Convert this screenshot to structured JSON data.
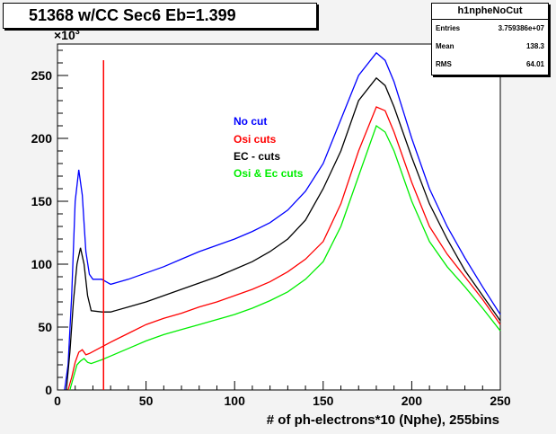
{
  "title": "51368 w/CC Sec6 Eb=1.399",
  "stats": {
    "name": "h1npheNoCut",
    "rows": [
      {
        "label": "Entries",
        "value": "3.759386e+07"
      },
      {
        "label": "Mean",
        "value": "138.3"
      },
      {
        "label": "RMS",
        "value": "64.01"
      }
    ]
  },
  "chart_data": {
    "type": "line",
    "title": "51368 w/CC Sec6 Eb=1.399",
    "xlabel": "# of ph-electrons*10 (Nphe), 255bins",
    "ylabel": "",
    "y_multiplier_label": "×10",
    "y_multiplier_exponent": "3",
    "xlim": [
      0,
      250
    ],
    "ylim": [
      0,
      275
    ],
    "x_ticks": [
      0,
      50,
      100,
      150,
      200,
      250
    ],
    "y_ticks": [
      0,
      50,
      100,
      150,
      200,
      250
    ],
    "grid": false,
    "vertical_marker_x": 26,
    "series": [
      {
        "name": "No cut",
        "color": "#0000ff",
        "points": [
          [
            4,
            0
          ],
          [
            6,
            20
          ],
          [
            8,
            75
          ],
          [
            10,
            150
          ],
          [
            12,
            175
          ],
          [
            14,
            155
          ],
          [
            16,
            110
          ],
          [
            18,
            92
          ],
          [
            20,
            88
          ],
          [
            25,
            88
          ],
          [
            30,
            84
          ],
          [
            40,
            88
          ],
          [
            50,
            93
          ],
          [
            60,
            98
          ],
          [
            70,
            104
          ],
          [
            80,
            110
          ],
          [
            90,
            115
          ],
          [
            100,
            120
          ],
          [
            110,
            126
          ],
          [
            120,
            133
          ],
          [
            130,
            143
          ],
          [
            140,
            158
          ],
          [
            150,
            180
          ],
          [
            160,
            215
          ],
          [
            170,
            250
          ],
          [
            180,
            268
          ],
          [
            185,
            262
          ],
          [
            190,
            245
          ],
          [
            200,
            200
          ],
          [
            210,
            160
          ],
          [
            220,
            130
          ],
          [
            230,
            105
          ],
          [
            240,
            82
          ],
          [
            250,
            60
          ]
        ]
      },
      {
        "name": "Osi cuts",
        "color": "#ff0000",
        "points": [
          [
            6,
            0
          ],
          [
            8,
            10
          ],
          [
            10,
            22
          ],
          [
            12,
            30
          ],
          [
            14,
            32
          ],
          [
            16,
            28
          ],
          [
            18,
            29
          ],
          [
            22,
            32
          ],
          [
            30,
            38
          ],
          [
            40,
            45
          ],
          [
            50,
            52
          ],
          [
            60,
            57
          ],
          [
            70,
            61
          ],
          [
            80,
            66
          ],
          [
            90,
            70
          ],
          [
            100,
            75
          ],
          [
            110,
            80
          ],
          [
            120,
            86
          ],
          [
            130,
            94
          ],
          [
            140,
            104
          ],
          [
            150,
            118
          ],
          [
            160,
            148
          ],
          [
            170,
            190
          ],
          [
            180,
            225
          ],
          [
            185,
            222
          ],
          [
            190,
            205
          ],
          [
            200,
            165
          ],
          [
            210,
            130
          ],
          [
            220,
            108
          ],
          [
            230,
            90
          ],
          [
            240,
            72
          ],
          [
            250,
            52
          ]
        ]
      },
      {
        "name": "EC - cuts",
        "color": "#000000",
        "points": [
          [
            5,
            0
          ],
          [
            7,
            30
          ],
          [
            9,
            70
          ],
          [
            11,
            100
          ],
          [
            13,
            113
          ],
          [
            15,
            100
          ],
          [
            17,
            75
          ],
          [
            19,
            63
          ],
          [
            25,
            62
          ],
          [
            30,
            62
          ],
          [
            40,
            66
          ],
          [
            50,
            70
          ],
          [
            60,
            75
          ],
          [
            70,
            80
          ],
          [
            80,
            85
          ],
          [
            90,
            90
          ],
          [
            100,
            96
          ],
          [
            110,
            102
          ],
          [
            120,
            110
          ],
          [
            130,
            120
          ],
          [
            140,
            135
          ],
          [
            150,
            160
          ],
          [
            160,
            190
          ],
          [
            170,
            230
          ],
          [
            180,
            248
          ],
          [
            185,
            242
          ],
          [
            190,
            225
          ],
          [
            200,
            185
          ],
          [
            210,
            148
          ],
          [
            220,
            120
          ],
          [
            230,
            95
          ],
          [
            240,
            75
          ],
          [
            250,
            55
          ]
        ]
      },
      {
        "name": "Osi & Ec cuts",
        "color": "#00ee00",
        "points": [
          [
            7,
            0
          ],
          [
            9,
            10
          ],
          [
            11,
            20
          ],
          [
            13,
            23
          ],
          [
            15,
            25
          ],
          [
            17,
            22
          ],
          [
            19,
            21
          ],
          [
            25,
            24
          ],
          [
            30,
            27
          ],
          [
            40,
            33
          ],
          [
            50,
            39
          ],
          [
            60,
            44
          ],
          [
            70,
            48
          ],
          [
            80,
            52
          ],
          [
            90,
            56
          ],
          [
            100,
            60
          ],
          [
            110,
            65
          ],
          [
            120,
            71
          ],
          [
            130,
            78
          ],
          [
            140,
            88
          ],
          [
            150,
            102
          ],
          [
            160,
            130
          ],
          [
            170,
            170
          ],
          [
            180,
            210
          ],
          [
            185,
            205
          ],
          [
            190,
            190
          ],
          [
            200,
            150
          ],
          [
            210,
            118
          ],
          [
            220,
            98
          ],
          [
            230,
            82
          ],
          [
            240,
            65
          ],
          [
            250,
            47
          ]
        ]
      }
    ]
  }
}
